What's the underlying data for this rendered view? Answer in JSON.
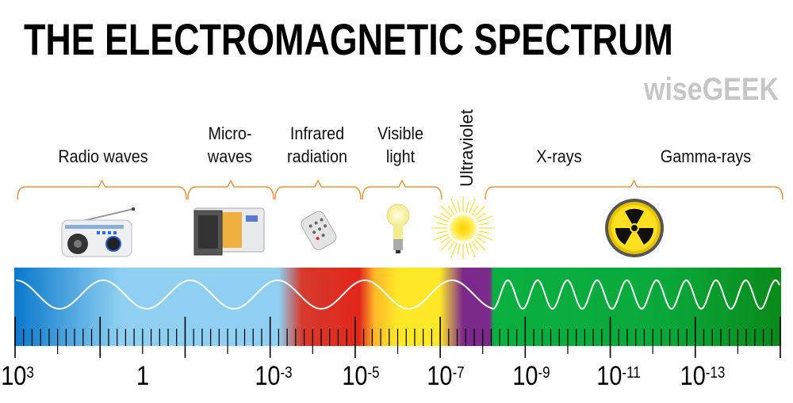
{
  "title": "THE ELECTROMAGNETIC SPECTRUM",
  "bands": [
    {
      "line1": "",
      "line2": "Radio waves",
      "icon": "radio-icon"
    },
    {
      "line1": "Micro-",
      "line2": "waves",
      "icon": "microwave-oven-icon"
    },
    {
      "line1": "Infrared",
      "line2": "radiation",
      "icon": "remote-control-icon"
    },
    {
      "line1": "Visible",
      "line2": "light",
      "icon": "light-bulb-icon"
    },
    {
      "line1": "Ultraviolet",
      "icon": "sun-icon"
    },
    {
      "line1": "",
      "line2": "X-rays",
      "icon": "radiation-symbol-icon"
    },
    {
      "line1": "",
      "line2": "Gamma-rays"
    }
  ],
  "spectrum_colors": {
    "radio_dark": "#0a78cc",
    "radio_light": "#8fd0f2",
    "infrared": "#e2261c",
    "visible": "#ffe828",
    "ultraviolet": "#7b2a8c",
    "xray_gamma": "#0aae3e",
    "bracket": "#e8953a"
  },
  "axis_labels": [
    {
      "base": "10",
      "exp": "3"
    },
    {
      "base": "1",
      "exp": ""
    },
    {
      "base": "10",
      "exp": "-3"
    },
    {
      "base": "10",
      "exp": "-5"
    },
    {
      "base": "10",
      "exp": "-7"
    },
    {
      "base": "10",
      "exp": "-9"
    },
    {
      "base": "10",
      "exp": "-11"
    },
    {
      "base": "10",
      "exp": "-13"
    }
  ],
  "watermark": "wiseGEEK"
}
